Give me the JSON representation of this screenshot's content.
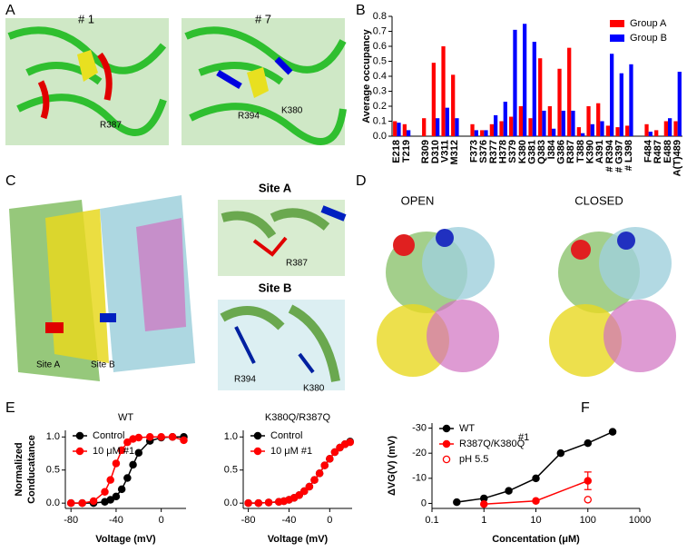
{
  "panels": {
    "letters": [
      "A",
      "B",
      "C",
      "D",
      "E",
      "F"
    ],
    "a_titles": [
      "# 1",
      "# 7"
    ],
    "a_labels": [
      "R387",
      "R394",
      "K380"
    ],
    "c_titles": [
      "Site A",
      "Site B"
    ],
    "c_labels": [
      "Site A",
      "Site B",
      "R387",
      "R394",
      "K380"
    ],
    "d_titles": [
      "OPEN",
      "CLOSED"
    ]
  },
  "chart_data": [
    {
      "type": "bar",
      "ylabel": "Average occupancy",
      "categories": [
        "E218",
        "T219",
        null,
        "R309",
        "D310",
        "V311",
        "M312",
        null,
        "F373",
        "S376",
        "R377",
        "H378",
        "S379",
        "K380",
        "G381",
        "Q383",
        "I384",
        "G386",
        "R387",
        "T388",
        "K390",
        "A391",
        "# R394",
        "# G397",
        "# L398",
        null,
        "F484",
        "R487",
        "E488",
        "A(T)489"
      ],
      "series": [
        {
          "name": "Group A",
          "color": "#ff0000",
          "values": [
            0.1,
            0.08,
            null,
            0.12,
            0.49,
            0.6,
            0.41,
            null,
            0.08,
            0.04,
            0.08,
            0.1,
            0.13,
            0.2,
            0.12,
            0.52,
            0.2,
            0.45,
            0.59,
            0.06,
            0.2,
            0.22,
            0.07,
            0.06,
            0.07,
            null,
            0.08,
            0.04,
            0.1,
            0.1
          ]
        },
        {
          "name": "Group B",
          "color": "#0000ff",
          "values": [
            0.09,
            0.04,
            null,
            0,
            0.12,
            0.19,
            0.12,
            null,
            0.04,
            0.04,
            0.14,
            0.23,
            0.71,
            0.75,
            0.63,
            0.17,
            0.05,
            0.17,
            0.17,
            0.02,
            0.08,
            0.1,
            0.55,
            0.42,
            0.48,
            null,
            0.03,
            0,
            0.12,
            0.43
          ]
        }
      ],
      "ylim": [
        0,
        0.8
      ],
      "yticks": [
        {
          "value": 0,
          "label": "0.0"
        },
        0.1,
        0.2,
        0.3,
        0.4,
        0.5,
        0.6,
        0.7,
        0.8
      ],
      "legend": "upper right"
    },
    {
      "type": "line",
      "title": "WT",
      "xlabel": "Voltage (mV)",
      "ylabel": [
        "Normalized",
        "Conducatance"
      ],
      "x": [
        -80,
        -70,
        -60,
        -50,
        -45,
        -40,
        -35,
        -30,
        -25,
        -20,
        -10,
        0,
        10,
        20
      ],
      "series": [
        {
          "name": "Control",
          "color": "#000000",
          "values": [
            0,
            0,
            0,
            0.02,
            0.05,
            0.1,
            0.21,
            0.38,
            0.58,
            0.76,
            0.94,
            0.99,
            1,
            1
          ]
        },
        {
          "name": "10 μM #1",
          "color": "#ff0000",
          "values": [
            0,
            0,
            0.03,
            0.17,
            0.35,
            0.6,
            0.8,
            0.92,
            0.97,
            0.99,
            1,
            1,
            1,
            0.95
          ]
        }
      ],
      "xlim": [
        -85,
        22
      ],
      "xticks": [
        -80,
        -40,
        0
      ],
      "ylim": [
        -0.08,
        1.1
      ],
      "yticks": [
        {
          "value": 0,
          "label": "0.0"
        },
        0.5,
        {
          "value": 1,
          "label": "1.0"
        }
      ],
      "legend": "upper left"
    },
    {
      "type": "line",
      "title": "K380Q/R387Q",
      "xlabel": "Voltage (mV)",
      "x": [
        -80,
        -70,
        -60,
        -50,
        -45,
        -40,
        -35,
        -30,
        -25,
        -20,
        -15,
        -10,
        -5,
        0,
        5,
        10,
        15,
        20
      ],
      "series": [
        {
          "name": "Control",
          "color": "#000000",
          "values": [
            0,
            0,
            0.01,
            0.02,
            0.03,
            0.05,
            0.08,
            0.12,
            0.18,
            0.25,
            0.35,
            0.45,
            0.57,
            0.67,
            0.77,
            0.84,
            0.89,
            0.93
          ]
        },
        {
          "name": "10 μM #1",
          "color": "#ff0000",
          "values": [
            0,
            0,
            0.01,
            0.02,
            0.03,
            0.05,
            0.08,
            0.12,
            0.18,
            0.25,
            0.35,
            0.45,
            0.57,
            0.67,
            0.77,
            0.84,
            0.89,
            0.92
          ]
        }
      ],
      "xlim": [
        -85,
        22
      ],
      "xticks": [
        -80,
        -40,
        0
      ],
      "ylim": [
        -0.08,
        1.1
      ],
      "yticks": [
        {
          "value": 0,
          "label": "0.0"
        },
        0.5,
        {
          "value": 1,
          "label": "1.0"
        }
      ],
      "legend": "upper left"
    },
    {
      "type": "line",
      "xlabel": "Concentation (μM)",
      "ylabel": "ΔVG(V) (mV)",
      "annotation": "#1",
      "log_x": true,
      "series": [
        {
          "name": "WT",
          "color": "#000000",
          "x": [
            0.3,
            1,
            3,
            10,
            30,
            100,
            300
          ],
          "values": [
            -0.5,
            -2,
            -5,
            -10,
            -20,
            -24,
            -28.5
          ]
        },
        {
          "name": "R387Q/K380Q",
          "color": "#ff0000",
          "x": [
            1,
            10,
            100
          ],
          "values": [
            0.3,
            -1,
            -9
          ],
          "errors": [
            null,
            null,
            3.5
          ]
        },
        {
          "name": "pH 5.5",
          "color": "#ff0000",
          "marker": "open",
          "x": [
            100
          ],
          "values": [
            -1.5
          ]
        }
      ],
      "xlim": [
        0.1,
        1000
      ],
      "xticks": [
        0.1,
        1,
        10,
        100,
        1000
      ],
      "ylim": [
        2,
        -32
      ],
      "yticks": [
        -30,
        -20,
        -10,
        0
      ],
      "legend": "upper left"
    }
  ]
}
